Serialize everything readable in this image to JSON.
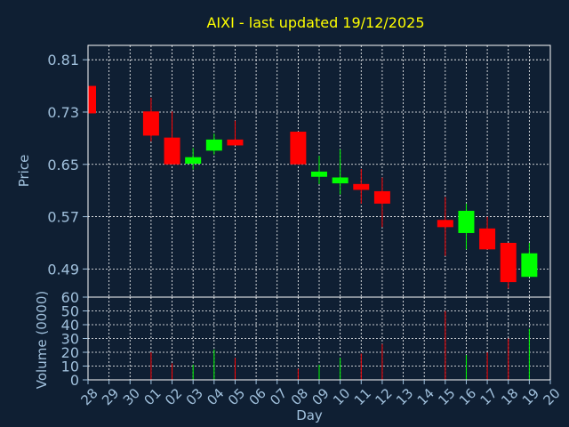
{
  "chart_data": {
    "type": "candlestick",
    "title": "AIXI - last updated 19/12/2025",
    "colors": {
      "background": "#0f1f33",
      "plot_border": "#ffffff",
      "grid": "#ffffff",
      "axis_text": "#a0c0dc",
      "title": "#ffff00",
      "up": "#00ff00",
      "down": "#ff0000"
    },
    "x_ticks": [
      "28",
      "29",
      "30",
      "01",
      "02",
      "03",
      "04",
      "05",
      "06",
      "07",
      "08",
      "09",
      "10",
      "11",
      "12",
      "13",
      "14",
      "15",
      "16",
      "17",
      "18",
      "19",
      "20"
    ],
    "xlabel": "Day",
    "price_panel": {
      "ylabel": "Price",
      "ylim": [
        0.447,
        0.832
      ],
      "y_ticks": [
        "0.81",
        "0.73",
        "0.65",
        "0.57",
        "0.49"
      ],
      "y_tick_values": [
        0.81,
        0.73,
        0.65,
        0.57,
        0.49
      ]
    },
    "volume_panel": {
      "ylabel": "Volume (0000)",
      "ylim": [
        0,
        60
      ],
      "y_ticks": [
        "60",
        "50",
        "40",
        "30",
        "20",
        "10",
        "0"
      ],
      "y_tick_values": [
        60,
        50,
        40,
        30,
        20,
        10,
        0
      ]
    },
    "candles": [
      {
        "day": "28",
        "open": 0.77,
        "high": 0.77,
        "low": 0.728,
        "close": 0.728,
        "volume": 0
      },
      {
        "day": "01",
        "open": 0.731,
        "high": 0.752,
        "low": 0.685,
        "close": 0.694,
        "volume": 20
      },
      {
        "day": "02",
        "open": 0.691,
        "high": 0.731,
        "low": 0.65,
        "close": 0.65,
        "volume": 12
      },
      {
        "day": "03",
        "open": 0.651,
        "high": 0.675,
        "low": 0.642,
        "close": 0.661,
        "volume": 11
      },
      {
        "day": "04",
        "open": 0.671,
        "high": 0.697,
        "low": 0.665,
        "close": 0.688,
        "volume": 22
      },
      {
        "day": "05",
        "open": 0.688,
        "high": 0.717,
        "low": 0.68,
        "close": 0.679,
        "volume": 16
      },
      {
        "day": "08",
        "open": 0.7,
        "high": 0.7,
        "low": 0.65,
        "close": 0.65,
        "volume": 8
      },
      {
        "day": "09",
        "open": 0.631,
        "high": 0.663,
        "low": 0.62,
        "close": 0.639,
        "volume": 11
      },
      {
        "day": "10",
        "open": 0.621,
        "high": 0.673,
        "low": 0.604,
        "close": 0.63,
        "volume": 16
      },
      {
        "day": "11",
        "open": 0.62,
        "high": 0.643,
        "low": 0.59,
        "close": 0.611,
        "volume": 19
      },
      {
        "day": "12",
        "open": 0.609,
        "high": 0.63,
        "low": 0.554,
        "close": 0.59,
        "volume": 26
      },
      {
        "day": "15",
        "open": 0.565,
        "high": 0.6,
        "low": 0.51,
        "close": 0.554,
        "volume": 50
      },
      {
        "day": "16",
        "open": 0.545,
        "high": 0.59,
        "low": 0.52,
        "close": 0.579,
        "volume": 18
      },
      {
        "day": "17",
        "open": 0.552,
        "high": 0.57,
        "low": 0.52,
        "close": 0.52,
        "volume": 20
      },
      {
        "day": "18",
        "open": 0.53,
        "high": 0.53,
        "low": 0.46,
        "close": 0.47,
        "volume": 30
      },
      {
        "day": "19",
        "open": 0.478,
        "high": 0.53,
        "low": 0.478,
        "close": 0.514,
        "volume": 37
      }
    ]
  }
}
